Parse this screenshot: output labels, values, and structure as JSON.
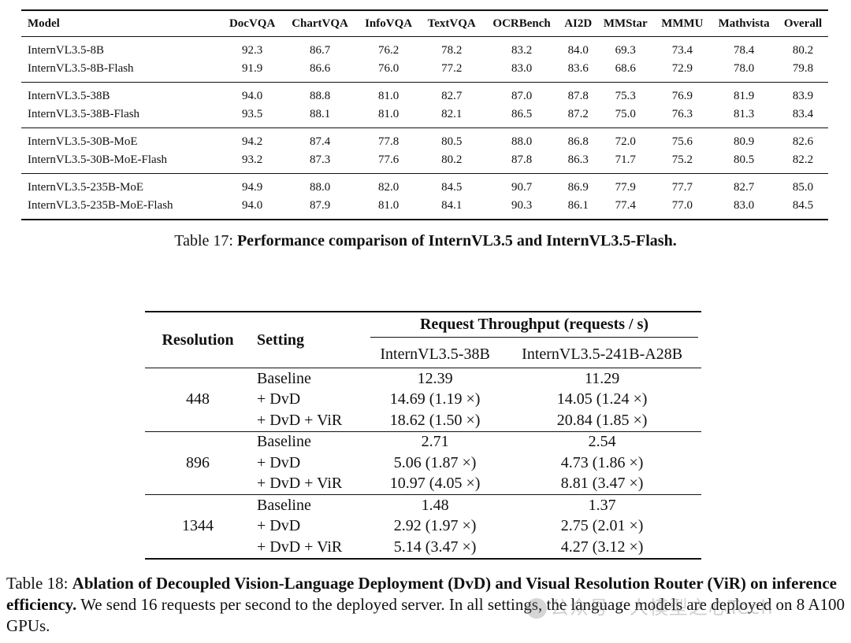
{
  "table17": {
    "headers": [
      "Model",
      "DocVQA",
      "ChartVQA",
      "InfoVQA",
      "TextVQA",
      "OCRBench",
      "AI2D",
      "MMStar",
      "MMMU",
      "Mathvista",
      "Overall"
    ],
    "groups": [
      [
        [
          "InternVL3.5-8B",
          "92.3",
          "86.7",
          "76.2",
          "78.2",
          "83.2",
          "84.0",
          "69.3",
          "73.4",
          "78.4",
          "80.2"
        ],
        [
          "InternVL3.5-8B-Flash",
          "91.9",
          "86.6",
          "76.0",
          "77.2",
          "83.0",
          "83.6",
          "68.6",
          "72.9",
          "78.0",
          "79.8"
        ]
      ],
      [
        [
          "InternVL3.5-38B",
          "94.0",
          "88.8",
          "81.0",
          "82.7",
          "87.0",
          "87.8",
          "75.3",
          "76.9",
          "81.9",
          "83.9"
        ],
        [
          "InternVL3.5-38B-Flash",
          "93.5",
          "88.1",
          "81.0",
          "82.1",
          "86.5",
          "87.2",
          "75.0",
          "76.3",
          "81.3",
          "83.4"
        ]
      ],
      [
        [
          "InternVL3.5-30B-MoE",
          "94.2",
          "87.4",
          "77.8",
          "80.5",
          "88.0",
          "86.8",
          "72.0",
          "75.6",
          "80.9",
          "82.6"
        ],
        [
          "InternVL3.5-30B-MoE-Flash",
          "93.2",
          "87.3",
          "77.6",
          "80.2",
          "87.8",
          "86.3",
          "71.7",
          "75.2",
          "80.5",
          "82.2"
        ]
      ],
      [
        [
          "InternVL3.5-235B-MoE",
          "94.9",
          "88.0",
          "82.0",
          "84.5",
          "90.7",
          "86.9",
          "77.9",
          "77.7",
          "82.7",
          "85.0"
        ],
        [
          "InternVL3.5-235B-MoE-Flash",
          "94.0",
          "87.9",
          "81.0",
          "84.1",
          "90.3",
          "86.1",
          "77.4",
          "77.0",
          "83.0",
          "84.5"
        ]
      ]
    ],
    "caption_label": "Table 17:",
    "caption_text": "Performance comparison of InternVL3.5 and InternVL3.5-Flash."
  },
  "table18": {
    "header_resolution": "Resolution",
    "header_setting": "Setting",
    "header_throughput": "Request Throughput (requests / s)",
    "model_cols": [
      "InternVL3.5-38B",
      "InternVL3.5-241B-A28B"
    ],
    "groups": [
      {
        "resolution": "448",
        "rows": [
          {
            "setting": "Baseline",
            "v1": "12.39",
            "v2": "11.29"
          },
          {
            "setting": "+ DvD",
            "v1": "14.69 (1.19 ×)",
            "v2": "14.05 (1.24 ×)"
          },
          {
            "setting": "+ DvD + ViR",
            "v1": "18.62 (1.50 ×)",
            "v2": "20.84 (1.85 ×)"
          }
        ]
      },
      {
        "resolution": "896",
        "rows": [
          {
            "setting": "Baseline",
            "v1": "2.71",
            "v2": "2.54"
          },
          {
            "setting": "+ DvD",
            "v1": "5.06 (1.87 ×)",
            "v2": "4.73 (1.86 ×)"
          },
          {
            "setting": "+ DvD + ViR",
            "v1": "10.97 (4.05 ×)",
            "v2": "8.81 (3.47 ×)"
          }
        ]
      },
      {
        "resolution": "1344",
        "rows": [
          {
            "setting": "Baseline",
            "v1": "1.48",
            "v2": "1.37"
          },
          {
            "setting": "+ DvD",
            "v1": "2.92 (1.97 ×)",
            "v2": "2.75 (2.01 ×)"
          },
          {
            "setting": "+ DvD + ViR",
            "v1": "5.14 (3.47 ×)",
            "v2": "4.27 (3.12 ×)"
          }
        ]
      }
    ],
    "caption_label": "Table 18:",
    "caption_bold": "Ablation of Decoupled Vision-Language Deployment (DvD) and Visual Resolution Router (ViR) on inference efficiency.",
    "caption_text": "We send 16 requests per second to the deployed server. In all settings, the language models are deployed on 8 A100 GPUs."
  },
  "watermark": {
    "text": "公众号 · 人模型之心Tech"
  }
}
